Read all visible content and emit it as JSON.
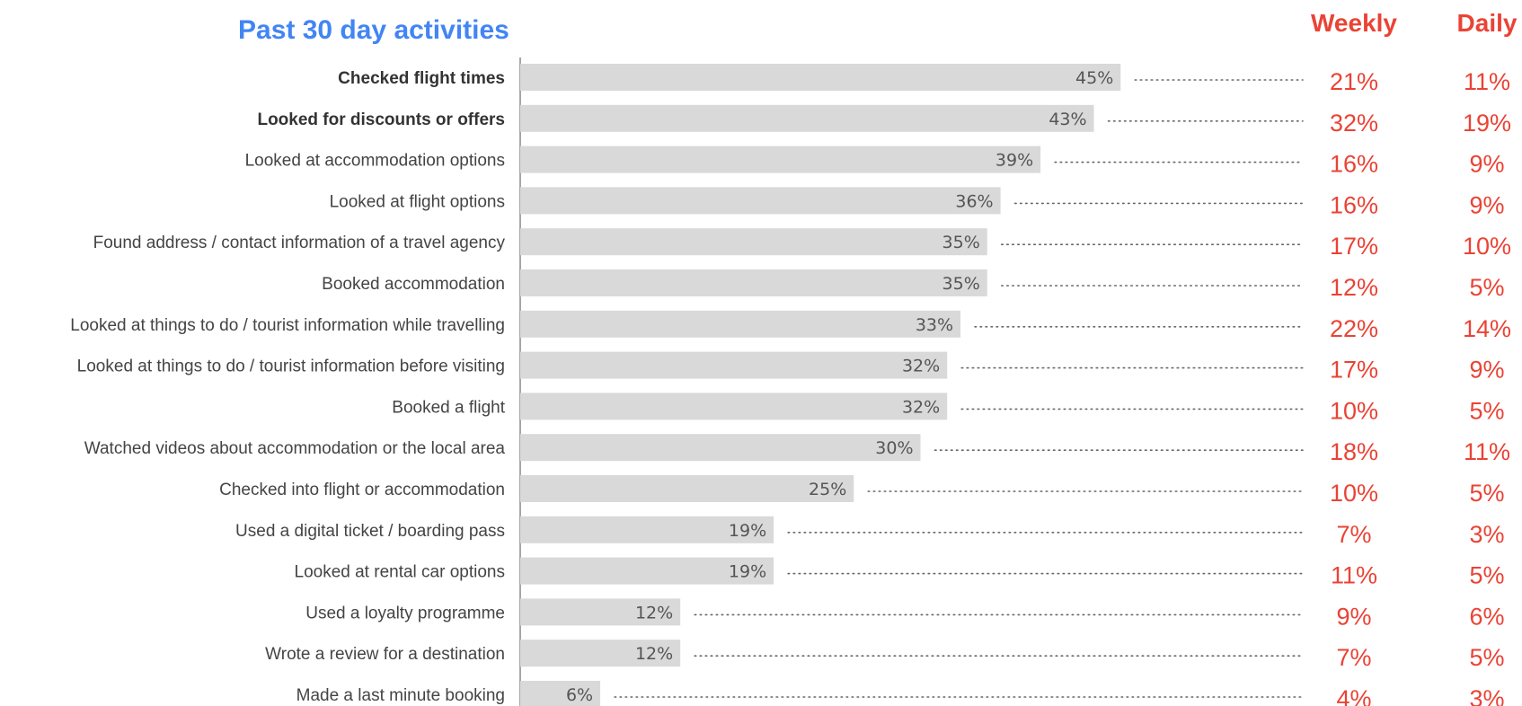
{
  "chart_data": {
    "type": "bar",
    "orientation": "horizontal",
    "title": "Past 30 day activities",
    "categories": [
      "Checked flight times",
      "Looked for discounts or offers",
      "Looked at accommodation options",
      "Looked at flight options",
      "Found address / contact information of a travel agency",
      "Booked accommodation",
      "Looked at things to do / tourist information while travelling",
      "Looked at things to do / tourist information before visiting",
      "Booked a flight",
      "Watched videos about accommodation or the local area",
      "Checked into flight or accommodation",
      "Used a digital ticket / boarding pass",
      "Looked at rental car options",
      "Used a loyalty programme",
      "Wrote a review for a destination",
      "Made a last minute booking"
    ],
    "bold_categories": [
      "Checked flight times",
      "Looked for discounts or offers"
    ],
    "values": [
      45,
      43,
      39,
      36,
      35,
      35,
      33,
      32,
      32,
      30,
      25,
      19,
      19,
      12,
      12,
      6
    ],
    "value_labels": [
      "45%",
      "43%",
      "39%",
      "36%",
      "35%",
      "35%",
      "33%",
      "32%",
      "32%",
      "30%",
      "25%",
      "19%",
      "19%",
      "12%",
      "12%",
      "6%"
    ],
    "columns": [
      {
        "name": "Weekly",
        "values": [
          21,
          32,
          16,
          16,
          17,
          12,
          22,
          17,
          10,
          18,
          10,
          7,
          11,
          9,
          7,
          4
        ],
        "labels": [
          "21%",
          "32%",
          "16%",
          "16%",
          "17%",
          "12%",
          "22%",
          "17%",
          "10%",
          "18%",
          "10%",
          "7%",
          "11%",
          "9%",
          "7%",
          "4%"
        ]
      },
      {
        "name": "Daily",
        "values": [
          11,
          19,
          9,
          9,
          10,
          5,
          14,
          9,
          5,
          11,
          5,
          3,
          5,
          6,
          5,
          3
        ],
        "labels": [
          "11%",
          "19%",
          "9%",
          "9%",
          "10%",
          "5%",
          "14%",
          "9%",
          "5%",
          "11%",
          "5%",
          "3%",
          "5%",
          "6%",
          "5%",
          "3%"
        ]
      }
    ],
    "colors": {
      "bar": "#d9d9d9",
      "title": "#4285f4",
      "highlight": "#ea4335",
      "label": "#444444"
    },
    "xlim": [
      0,
      50
    ],
    "grid": false,
    "legend": "none"
  }
}
